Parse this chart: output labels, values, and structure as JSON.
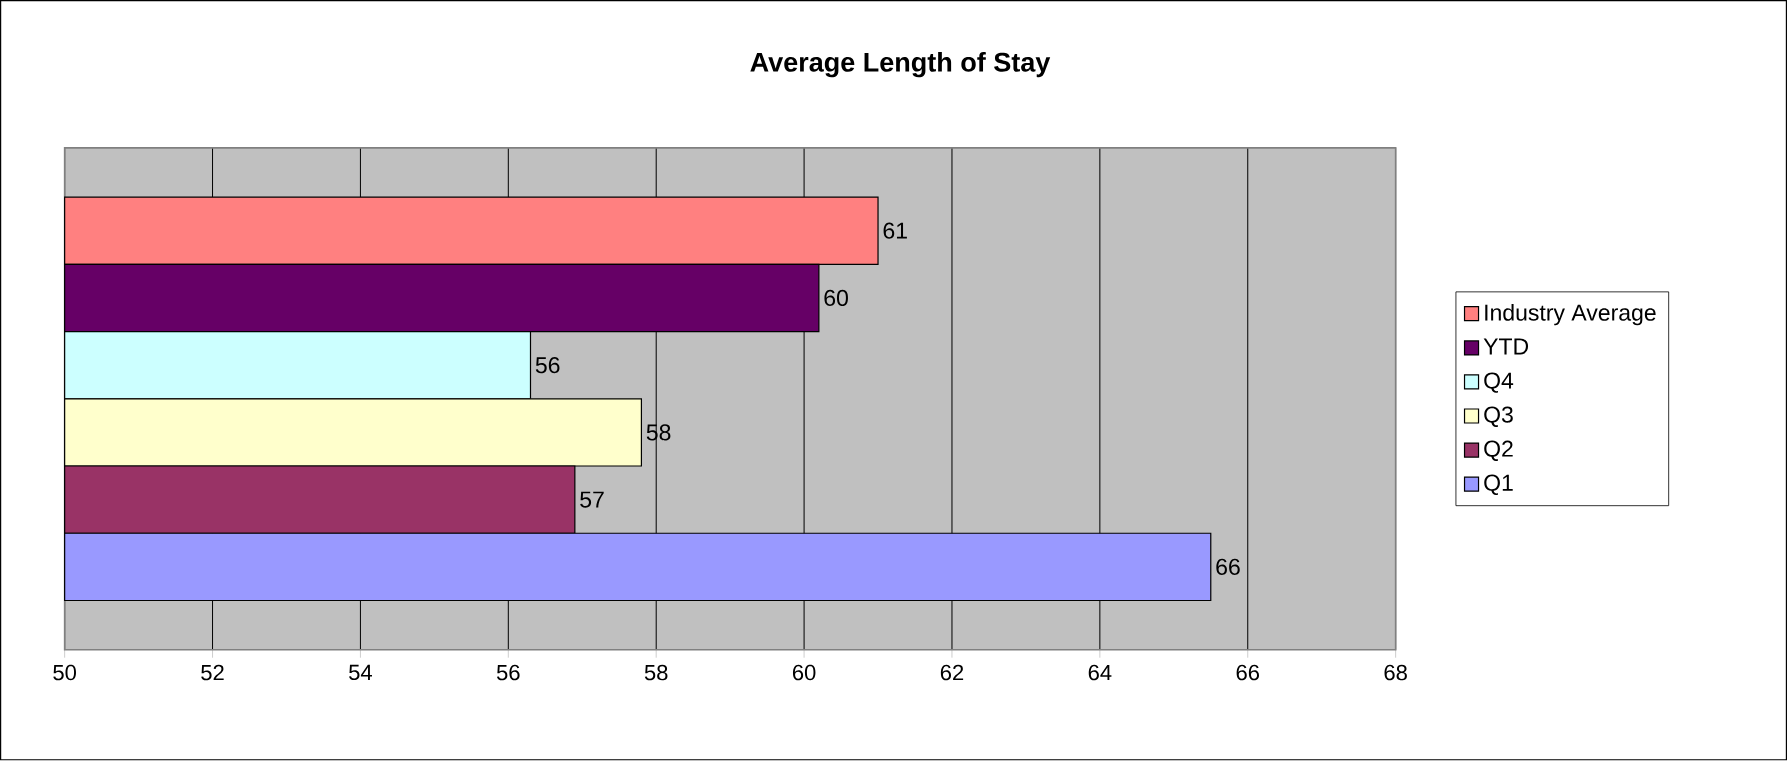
{
  "chart_data": {
    "type": "bar",
    "orientation": "horizontal",
    "title": "Average Length of Stay",
    "categories": [
      null
    ],
    "series": [
      {
        "name": "Industry Average",
        "color": "#ff8080",
        "values": [
          61.0
        ],
        "value_labels": [
          "61"
        ]
      },
      {
        "name": "YTD",
        "color": "#660066",
        "values": [
          60.2
        ],
        "value_labels": [
          "60"
        ]
      },
      {
        "name": "Q4",
        "color": "#ccffff",
        "values": [
          56.3
        ],
        "value_labels": [
          "56"
        ]
      },
      {
        "name": "Q3",
        "color": "#ffffcc",
        "values": [
          57.8
        ],
        "value_labels": [
          "58"
        ]
      },
      {
        "name": "Q2",
        "color": "#993366",
        "values": [
          56.9
        ],
        "value_labels": [
          "57"
        ]
      },
      {
        "name": "Q1",
        "color": "#9999ff",
        "values": [
          65.5
        ],
        "value_labels": [
          "66"
        ]
      }
    ],
    "xlim": [
      50,
      68
    ],
    "xticks": [
      50,
      52,
      54,
      56,
      58,
      60,
      62,
      64,
      66,
      68
    ],
    "grid": "x",
    "legend": "right"
  }
}
